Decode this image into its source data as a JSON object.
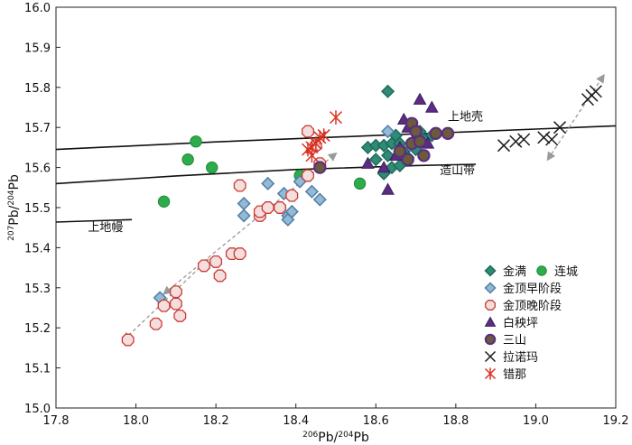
{
  "chart_data": {
    "type": "scatter",
    "title": "",
    "xlabel": "206Pb/204Pb",
    "ylabel": "207Pb/204Pb",
    "xlabel_parts": {
      "sup": "206",
      "base": "Pb/",
      "sup2": "204",
      "end": "Pb"
    },
    "ylabel_parts": {
      "sup": "207",
      "base": "Pb/",
      "sup2": "204",
      "end": "Pb"
    },
    "xlim": [
      17.8,
      19.2
    ],
    "ylim": [
      15.0,
      16.0
    ],
    "xticks": [
      "17.8",
      "18.0",
      "18.2",
      "18.4",
      "18.6",
      "18.8",
      "19.0",
      "19.2"
    ],
    "yticks": [
      "15.0",
      "15.1",
      "15.2",
      "15.3",
      "15.4",
      "15.5",
      "15.6",
      "15.7",
      "15.8",
      "15.9",
      "16.0"
    ],
    "curves": [
      {
        "name": "上地壳",
        "label_at": [
          18.78,
          15.717
        ],
        "points": [
          [
            17.8,
            15.645
          ],
          [
            18.2,
            15.664
          ],
          [
            18.6,
            15.68
          ],
          [
            19.0,
            15.696
          ],
          [
            19.2,
            15.704
          ]
        ]
      },
      {
        "name": "造山带",
        "label_at": [
          18.76,
          15.583
        ],
        "points": [
          [
            17.8,
            15.56
          ],
          [
            18.1,
            15.579
          ],
          [
            18.4,
            15.595
          ],
          [
            18.7,
            15.605
          ],
          [
            18.85,
            15.608
          ]
        ]
      },
      {
        "name": "上地幔",
        "label_at": [
          17.88,
          15.442
        ],
        "points": [
          [
            17.8,
            15.464
          ],
          [
            17.99,
            15.47
          ]
        ]
      }
    ],
    "trend_arrows": [
      {
        "from": [
          18.07,
          15.285
        ],
        "to": [
          18.5,
          15.635
        ]
      },
      {
        "from": [
          17.97,
          15.17
        ],
        "to": [
          18.18,
          15.37
        ]
      },
      {
        "from": [
          19.03,
          15.62
        ],
        "to": [
          19.17,
          15.83
        ]
      }
    ],
    "series": [
      {
        "name": "金满",
        "marker": "diamond",
        "fill": "#2e8b76",
        "stroke": "#1f6b5a",
        "points": [
          [
            18.63,
            15.79
          ],
          [
            18.58,
            15.65
          ],
          [
            18.6,
            15.655
          ],
          [
            18.62,
            15.655
          ],
          [
            18.64,
            15.66
          ],
          [
            18.65,
            15.68
          ],
          [
            18.66,
            15.66
          ],
          [
            18.63,
            15.63
          ],
          [
            18.67,
            15.64
          ],
          [
            18.7,
            15.645
          ],
          [
            18.72,
            15.67
          ],
          [
            18.74,
            15.68
          ],
          [
            18.64,
            15.6
          ],
          [
            18.62,
            15.585
          ],
          [
            18.68,
            15.625
          ],
          [
            18.71,
            15.69
          ],
          [
            18.6,
            15.62
          ],
          [
            18.66,
            15.605
          ]
        ]
      },
      {
        "name": "连城",
        "marker": "circle",
        "fill": "#2eab4a",
        "stroke": "#1d8a36",
        "points": [
          [
            18.15,
            15.665
          ],
          [
            18.13,
            15.62
          ],
          [
            18.19,
            15.6
          ],
          [
            18.07,
            15.515
          ],
          [
            18.41,
            15.58
          ],
          [
            18.56,
            15.56
          ]
        ]
      },
      {
        "name": "金顶早阶段",
        "marker": "diamond",
        "fill": "#93b9d4",
        "stroke": "#4f7ea6",
        "points": [
          [
            18.06,
            15.275
          ],
          [
            18.27,
            15.51
          ],
          [
            18.27,
            15.48
          ],
          [
            18.33,
            15.56
          ],
          [
            18.37,
            15.535
          ],
          [
            18.36,
            15.5
          ],
          [
            18.38,
            15.48
          ],
          [
            18.38,
            15.47
          ],
          [
            18.39,
            15.49
          ],
          [
            18.41,
            15.565
          ],
          [
            18.44,
            15.54
          ],
          [
            18.46,
            15.52
          ],
          [
            18.63,
            15.69
          ]
        ]
      },
      {
        "name": "金顶晚阶段",
        "marker": "octagon",
        "fill": "#f4dede",
        "stroke": "#c93b33",
        "points": [
          [
            17.98,
            15.17
          ],
          [
            18.05,
            15.21
          ],
          [
            18.07,
            15.255
          ],
          [
            18.1,
            15.29
          ],
          [
            18.1,
            15.26
          ],
          [
            18.11,
            15.23
          ],
          [
            18.17,
            15.355
          ],
          [
            18.2,
            15.365
          ],
          [
            18.21,
            15.33
          ],
          [
            18.24,
            15.385
          ],
          [
            18.26,
            15.385
          ],
          [
            18.26,
            15.555
          ],
          [
            18.31,
            15.48
          ],
          [
            18.31,
            15.49
          ],
          [
            18.33,
            15.5
          ],
          [
            18.36,
            15.5
          ],
          [
            18.39,
            15.53
          ],
          [
            18.43,
            15.69
          ],
          [
            18.43,
            15.58
          ],
          [
            18.45,
            15.655
          ],
          [
            18.46,
            15.61
          ]
        ]
      },
      {
        "name": "白秧坪",
        "marker": "triangle",
        "fill": "#5a2d82",
        "stroke": "#3f1d5e",
        "points": [
          [
            18.71,
            15.77
          ],
          [
            18.74,
            15.75
          ],
          [
            18.58,
            15.61
          ],
          [
            18.62,
            15.6
          ],
          [
            18.66,
            15.65
          ],
          [
            18.68,
            15.7
          ],
          [
            18.63,
            15.545
          ],
          [
            18.7,
            15.68
          ],
          [
            18.73,
            15.66
          ],
          [
            18.67,
            15.72
          ],
          [
            18.65,
            15.63
          ]
        ]
      },
      {
        "name": "三山",
        "marker": "circle-outlined",
        "fill": "#6b5a3c",
        "stroke": "#5a2d82",
        "points": [
          [
            18.46,
            15.6
          ],
          [
            18.69,
            15.71
          ],
          [
            18.7,
            15.69
          ],
          [
            18.68,
            15.62
          ],
          [
            18.72,
            15.63
          ],
          [
            18.75,
            15.685
          ],
          [
            18.78,
            15.685
          ],
          [
            18.66,
            15.64
          ],
          [
            18.69,
            15.66
          ],
          [
            18.71,
            15.665
          ]
        ]
      },
      {
        "name": "拉诺玛",
        "marker": "x",
        "fill": "none",
        "stroke": "#1a1a1a",
        "points": [
          [
            18.92,
            15.655
          ],
          [
            18.95,
            15.665
          ],
          [
            18.97,
            15.67
          ],
          [
            19.02,
            15.675
          ],
          [
            19.04,
            15.67
          ],
          [
            19.06,
            15.7
          ],
          [
            19.13,
            15.77
          ],
          [
            19.14,
            15.78
          ],
          [
            19.15,
            15.79
          ]
        ]
      },
      {
        "name": "错那",
        "marker": "asterisk",
        "fill": "none",
        "stroke": "#d9301e",
        "points": [
          [
            18.5,
            15.725
          ],
          [
            18.43,
            15.645
          ],
          [
            18.44,
            15.63
          ],
          [
            18.45,
            15.66
          ],
          [
            18.46,
            15.675
          ],
          [
            18.47,
            15.68
          ],
          [
            18.44,
            15.65
          ]
        ]
      }
    ]
  }
}
